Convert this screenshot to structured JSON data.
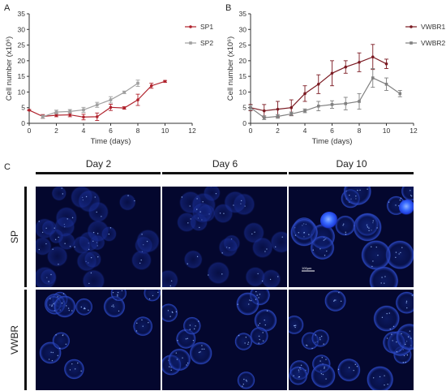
{
  "panels": {
    "a": "A",
    "b": "B",
    "c": "C"
  },
  "chart_data": [
    {
      "type": "line",
      "title": "",
      "xlabel": "Time (days)",
      "ylabel": "Cell number (x10⁶)",
      "xlim": [
        0,
        12
      ],
      "ylim": [
        0,
        35
      ],
      "x_ticks": [
        "0",
        "2",
        "4",
        "6",
        "8",
        "10",
        "12"
      ],
      "y_ticks": [
        "0",
        "5",
        "10",
        "15",
        "20",
        "25",
        "30",
        "35"
      ],
      "legend_position": "top-right",
      "series": [
        {
          "name": "SP1",
          "color": "#b0232d",
          "x": [
            0,
            1,
            2,
            3,
            4,
            5,
            6,
            7,
            8,
            9,
            10
          ],
          "y": [
            4.2,
            2.2,
            2.6,
            2.7,
            2.0,
            2.1,
            5.1,
            4.9,
            7.5,
            12.0,
            13.4
          ],
          "err": [
            0.2,
            0.6,
            0.5,
            0.6,
            0.9,
            1.2,
            1.0,
            0.4,
            1.8,
            0.8,
            0.3
          ]
        },
        {
          "name": "SP2",
          "color": "#a0a0a0",
          "x": [
            1,
            2,
            3,
            4,
            5,
            6,
            7,
            8
          ],
          "y": [
            2.1,
            3.6,
            3.8,
            4.3,
            5.9,
            7.5,
            9.9,
            12.8
          ],
          "err": [
            0.5,
            0.6,
            0.6,
            0.8,
            0.8,
            1.0,
            0.4,
            1.0
          ]
        }
      ]
    },
    {
      "type": "line",
      "title": "",
      "xlabel": "Time (days)",
      "ylabel": "Cell number (x10⁶)",
      "xlim": [
        0,
        12
      ],
      "ylim": [
        0,
        35
      ],
      "x_ticks": [
        "0",
        "2",
        "4",
        "6",
        "8",
        "10",
        "12"
      ],
      "y_ticks": [
        "0",
        "5",
        "10",
        "15",
        "20",
        "25",
        "30",
        "35"
      ],
      "legend_position": "top-right",
      "series": [
        {
          "name": "VWBR1",
          "color": "#7b1a22",
          "x": [
            0,
            1,
            2,
            3,
            4,
            5,
            6,
            7,
            8,
            9,
            10
          ],
          "y": [
            5.0,
            4.0,
            4.5,
            5.0,
            9.5,
            12.5,
            16.0,
            18.0,
            19.5,
            21.2,
            19.0
          ],
          "err": [
            1.0,
            2.0,
            2.5,
            2.5,
            2.5,
            3.0,
            4.0,
            2.0,
            3.0,
            4.0,
            1.5
          ]
        },
        {
          "name": "VWBR2",
          "color": "#808080",
          "x": [
            0,
            1,
            2,
            3,
            4,
            5,
            6,
            7,
            8,
            9,
            10,
            11
          ],
          "y": [
            5.0,
            1.8,
            2.2,
            3.0,
            4.0,
            5.5,
            6.0,
            6.3,
            7.0,
            14.5,
            12.5,
            9.5
          ],
          "err": [
            0.8,
            0.6,
            0.6,
            0.6,
            0.6,
            1.5,
            1.2,
            2.0,
            2.5,
            3.0,
            2.0,
            1.0
          ]
        }
      ]
    }
  ],
  "micrographs": {
    "columns": [
      "Day 2",
      "Day 6",
      "Day 10"
    ],
    "rows": [
      "SP",
      "VWBR"
    ],
    "scale_bar_label": "100μm"
  }
}
